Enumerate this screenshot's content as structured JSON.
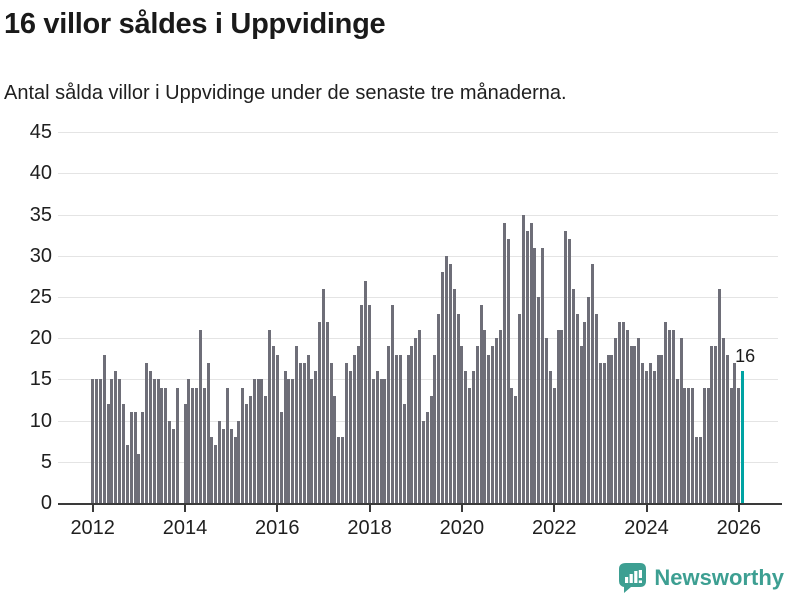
{
  "header": {
    "title": "16 villor såldes i Uppvidinge",
    "subtitle": "Antal sålda villor i Uppvidinge under de senaste tre månaderna."
  },
  "chart_data": {
    "type": "bar",
    "title": "16 villor såldes i Uppvidinge",
    "subtitle": "Antal sålda villor i Uppvidinge under de senaste tre månaderna.",
    "x_start": "2012-01",
    "x_end": "2026-02",
    "x_tick_labels": [
      "2012",
      "2014",
      "2016",
      "2018",
      "2020",
      "2022",
      "2024",
      "2026"
    ],
    "y_ticks": [
      0,
      5,
      10,
      15,
      20,
      25,
      30,
      35,
      40,
      45
    ],
    "ylim": [
      0,
      45
    ],
    "grid": "horizontal",
    "bar_color": "#6e6e78",
    "highlight_color": "#00a3a3",
    "highlight_index": 169,
    "annotation_label": "16",
    "values": [
      15,
      15,
      15,
      18,
      12,
      15,
      16,
      15,
      12,
      7,
      11,
      11,
      6,
      11,
      17,
      16,
      15,
      15,
      14,
      14,
      10,
      9,
      14,
      0,
      12,
      15,
      14,
      14,
      21,
      14,
      17,
      8,
      7,
      10,
      9,
      14,
      9,
      8,
      10,
      14,
      12,
      13,
      15,
      15,
      15,
      13,
      21,
      19,
      18,
      11,
      16,
      15,
      15,
      19,
      17,
      17,
      18,
      15,
      16,
      22,
      26,
      22,
      17,
      13,
      8,
      8,
      17,
      16,
      18,
      19,
      24,
      27,
      24,
      15,
      16,
      15,
      15,
      19,
      24,
      18,
      18,
      12,
      18,
      19,
      20,
      21,
      10,
      11,
      13,
      18,
      23,
      28,
      30,
      29,
      26,
      23,
      19,
      16,
      14,
      16,
      19,
      24,
      21,
      18,
      19,
      20,
      21,
      34,
      32,
      14,
      13,
      23,
      35,
      33,
      34,
      31,
      25,
      31,
      20,
      16,
      14,
      21,
      21,
      33,
      32,
      26,
      23,
      19,
      22,
      25,
      29,
      23,
      17,
      17,
      18,
      18,
      20,
      22,
      22,
      21,
      19,
      19,
      20,
      17,
      16,
      17,
      16,
      18,
      18,
      22,
      21,
      21,
      15,
      20,
      14,
      14,
      14,
      8,
      8,
      14,
      14,
      19,
      19,
      26,
      20,
      18,
      14,
      17,
      14,
      16
    ]
  },
  "footer": {
    "brand": "Newsworthy",
    "brand_color": "#3d9f92",
    "logo_icon": "bar-chart-speech-bubble-icon"
  }
}
